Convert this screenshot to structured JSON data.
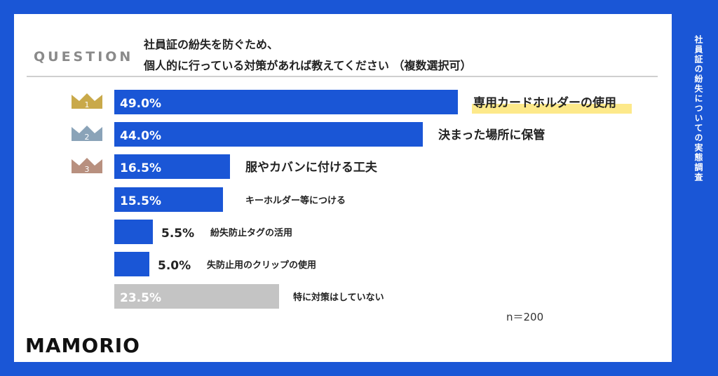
{
  "question": {
    "label": "QUESTION",
    "line1": "社員証の紛失を防ぐため、",
    "line2": "個人的に行っている対策があれば教えてください （複数選択可）"
  },
  "side_title": "社員証の紛失についての実態調査",
  "sample_size": "n＝200",
  "brand": "MAMORIO",
  "colors": {
    "bar": "#1a56d6",
    "bar_none": "#c4c4c4",
    "rank1": "#c9a94a",
    "rank2": "#8aa3b8",
    "rank3": "#b8907f",
    "highlight": "#fde98a"
  },
  "chart_data": {
    "type": "bar",
    "orientation": "horizontal",
    "categories": [
      "専用カードホルダーの使用",
      "決まった場所に保管",
      "服やカバンに付ける工夫",
      "キーホルダー等につける",
      "紛失防止タグの活用",
      "失防止用のクリップの使用",
      "特に対策はしていない"
    ],
    "values": [
      49.0,
      44.0,
      16.5,
      15.5,
      5.5,
      5.0,
      23.5
    ],
    "value_labels": [
      "49.0%",
      "44.0%",
      "16.5%",
      "15.5%",
      "5.5%",
      "5.0%",
      "23.5%"
    ],
    "ranks": [
      "1",
      "2",
      "3"
    ],
    "unit": "%",
    "xlim": [
      0,
      100
    ]
  }
}
